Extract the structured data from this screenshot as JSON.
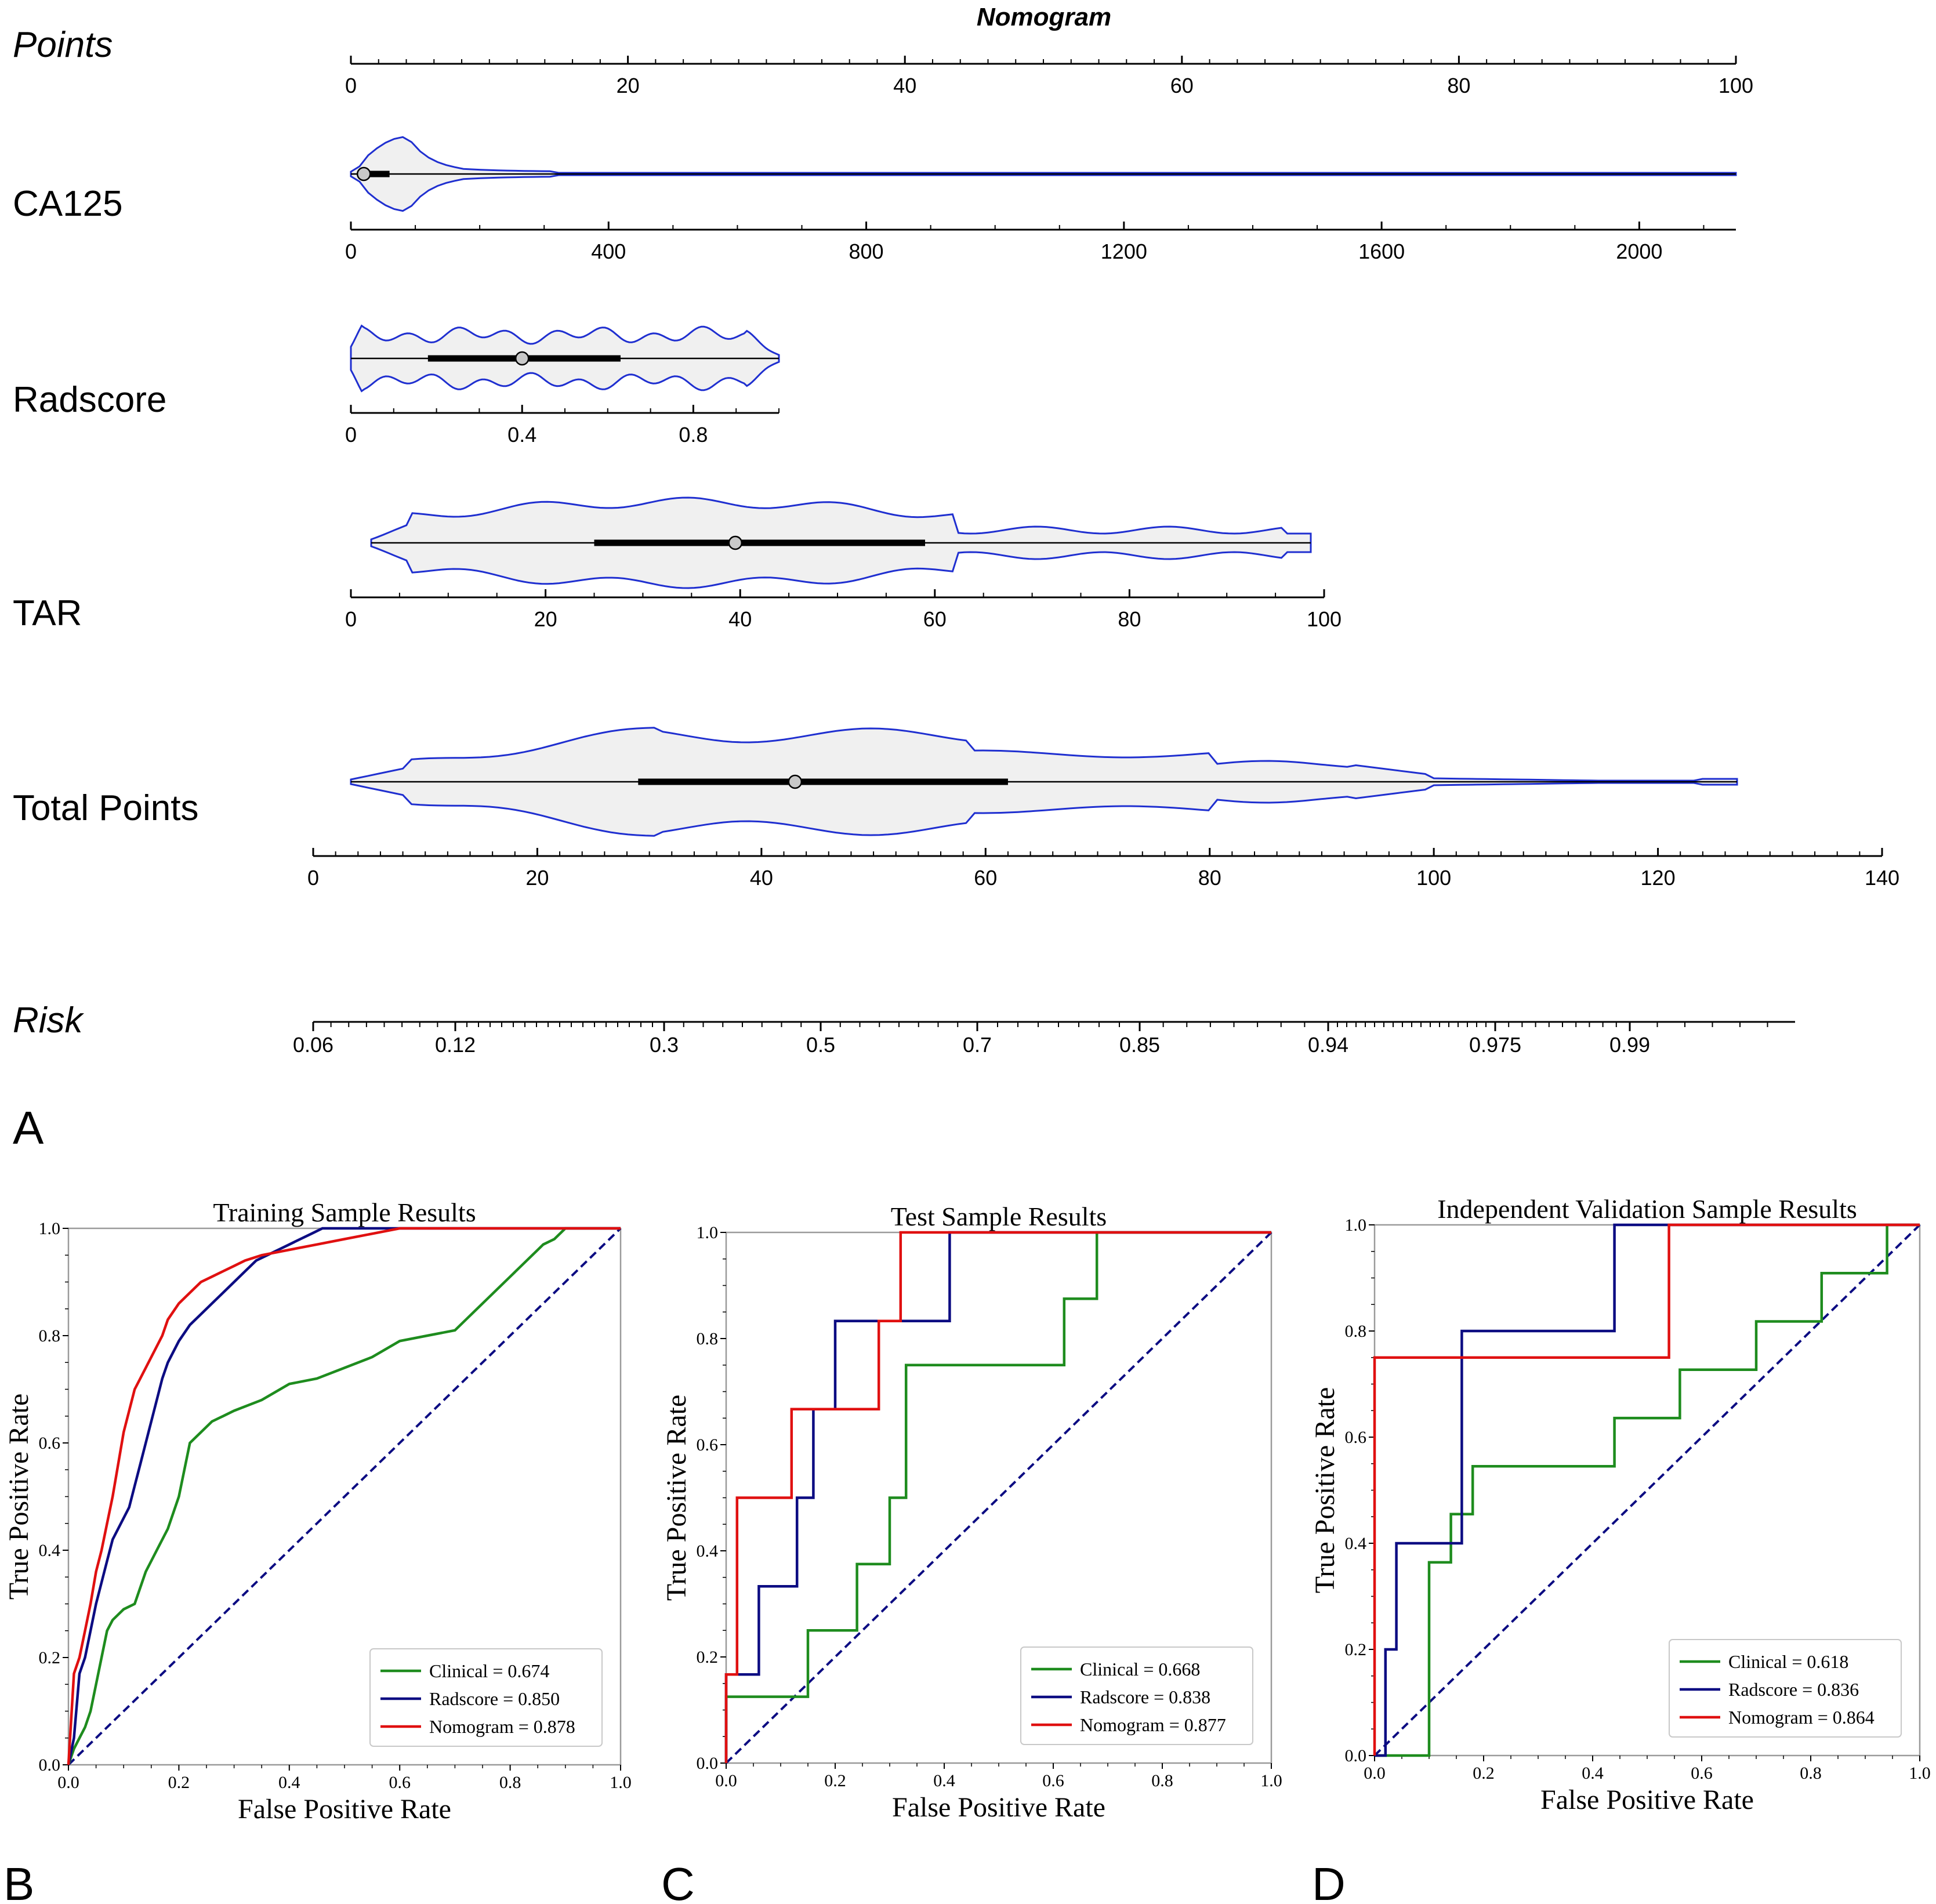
{
  "nomogram": {
    "title": "Nomogram",
    "panel_label": "A",
    "rows": [
      {
        "key": "points",
        "label": "Points",
        "italic": true
      },
      {
        "key": "ca125",
        "label": "CA125",
        "italic": false
      },
      {
        "key": "radscore",
        "label": "Radscore",
        "italic": false
      },
      {
        "key": "tar",
        "label": "TAR",
        "italic": false
      },
      {
        "key": "total",
        "label": "Total Points",
        "italic": false
      },
      {
        "key": "risk",
        "label": "Risk",
        "italic": true
      }
    ],
    "points_axis": {
      "min": 0,
      "max": 100,
      "ticks": [
        0,
        20,
        40,
        60,
        80,
        100
      ],
      "tick_labels": [
        "0",
        "20",
        "40",
        "60",
        "80",
        "100"
      ]
    },
    "ca125_axis": {
      "min": 0,
      "max": 2150,
      "ticks": [
        0,
        400,
        800,
        1200,
        1600,
        2000
      ],
      "tick_labels": [
        "0",
        "400",
        "800",
        "1200",
        "1600",
        "2000"
      ]
    },
    "radscore_axis": {
      "min": 0,
      "max": 1,
      "ticks": [
        0,
        0.4,
        0.8
      ],
      "tick_labels": [
        "0",
        "0.4",
        "0.8"
      ]
    },
    "tar_axis": {
      "min": 0,
      "max": 100,
      "ticks": [
        0,
        20,
        40,
        60,
        80,
        100
      ],
      "tick_labels": [
        "0",
        "20",
        "40",
        "60",
        "80",
        "100"
      ]
    },
    "total_axis": {
      "min": 0,
      "max": 140,
      "ticks": [
        0,
        20,
        40,
        60,
        80,
        100,
        120,
        140
      ],
      "tick_labels": [
        "0",
        "20",
        "40",
        "60",
        "80",
        "100",
        "120",
        "140"
      ]
    },
    "risk_axis": {
      "labels": [
        "0.06",
        "0.12",
        "0.3",
        "0.5",
        "0.7",
        "0.85",
        "0.94",
        "0.975",
        "0.99"
      ]
    },
    "distributions": {
      "ca125": {
        "q1": 10,
        "median": 20,
        "q3": 60
      },
      "radscore": {
        "q1": 0.18,
        "median": 0.4,
        "q3": 0.63
      },
      "tar": {
        "q1": 25,
        "median": 39.5,
        "q3": 59
      },
      "total": {
        "q1": 29,
        "median": 43,
        "q3": 62
      }
    }
  },
  "panel_labels": {
    "b": "B",
    "c": "C",
    "d": "D"
  },
  "colors": {
    "clinical": "#1e8c1e",
    "radscore": "#0c0c82",
    "nomogram": "#e01010",
    "diagonal": "#0c0c82",
    "violin_line": "#1f2fd0",
    "violin_fill": "#f0f0f0"
  },
  "chart_data": [
    {
      "type": "line",
      "title": "Training Sample Results",
      "xlabel": "False Positive Rate",
      "ylabel": "True Positive Rate",
      "xlim": [
        0,
        1
      ],
      "ylim": [
        0,
        1
      ],
      "x_tick_labels": [
        "0.0",
        "0.2",
        "0.4",
        "0.6",
        "0.8",
        "1.0"
      ],
      "y_tick_labels": [
        "0.0",
        "0.2",
        "0.4",
        "0.6",
        "0.8",
        "1.0"
      ],
      "legend": "bottom-right",
      "series": [
        {
          "name": "Clinical",
          "label": "Clinical = 0.674",
          "auc": 0.674,
          "color": "clinical",
          "x": [
            0,
            0.01,
            0.02,
            0.03,
            0.04,
            0.05,
            0.06,
            0.07,
            0.08,
            0.1,
            0.12,
            0.14,
            0.16,
            0.18,
            0.2,
            0.22,
            0.24,
            0.26,
            0.28,
            0.3,
            0.35,
            0.4,
            0.45,
            0.5,
            0.55,
            0.6,
            0.65,
            0.7,
            0.72,
            0.74,
            0.76,
            0.78,
            0.8,
            0.82,
            0.84,
            0.86,
            0.88,
            0.9,
            1.0
          ],
          "y": [
            0,
            0.03,
            0.05,
            0.07,
            0.1,
            0.15,
            0.2,
            0.25,
            0.27,
            0.29,
            0.3,
            0.36,
            0.4,
            0.44,
            0.5,
            0.6,
            0.62,
            0.64,
            0.65,
            0.66,
            0.68,
            0.71,
            0.72,
            0.74,
            0.76,
            0.79,
            0.8,
            0.81,
            0.83,
            0.85,
            0.87,
            0.89,
            0.91,
            0.93,
            0.95,
            0.97,
            0.98,
            1.0,
            1.0
          ]
        },
        {
          "name": "Radscore",
          "label": "Radscore = 0.850",
          "auc": 0.85,
          "color": "radscore",
          "x": [
            0,
            0.01,
            0.02,
            0.03,
            0.04,
            0.05,
            0.06,
            0.07,
            0.08,
            0.09,
            0.1,
            0.11,
            0.12,
            0.13,
            0.14,
            0.15,
            0.16,
            0.17,
            0.18,
            0.2,
            0.22,
            0.24,
            0.26,
            0.28,
            0.3,
            0.32,
            0.34,
            0.36,
            0.38,
            0.4,
            0.42,
            0.44,
            0.46,
            1.0
          ],
          "y": [
            0,
            0.05,
            0.17,
            0.2,
            0.25,
            0.3,
            0.34,
            0.38,
            0.42,
            0.44,
            0.46,
            0.48,
            0.52,
            0.56,
            0.6,
            0.64,
            0.68,
            0.72,
            0.75,
            0.79,
            0.82,
            0.84,
            0.86,
            0.88,
            0.9,
            0.92,
            0.94,
            0.95,
            0.96,
            0.97,
            0.98,
            0.99,
            1.0,
            1.0
          ]
        },
        {
          "name": "Nomogram",
          "label": "Nomogram = 0.878",
          "auc": 0.878,
          "color": "nomogram",
          "x": [
            0,
            0.01,
            0.02,
            0.03,
            0.04,
            0.05,
            0.06,
            0.07,
            0.08,
            0.09,
            0.1,
            0.11,
            0.12,
            0.13,
            0.14,
            0.15,
            0.16,
            0.17,
            0.18,
            0.2,
            0.22,
            0.24,
            0.26,
            0.28,
            0.3,
            0.32,
            0.35,
            0.4,
            0.45,
            0.5,
            0.55,
            0.6,
            0.65,
            1.0
          ],
          "y": [
            0,
            0.17,
            0.2,
            0.25,
            0.3,
            0.36,
            0.4,
            0.45,
            0.5,
            0.56,
            0.62,
            0.66,
            0.7,
            0.72,
            0.74,
            0.76,
            0.78,
            0.8,
            0.83,
            0.86,
            0.88,
            0.9,
            0.91,
            0.92,
            0.93,
            0.94,
            0.95,
            0.96,
            0.97,
            0.98,
            0.99,
            1.0,
            1.0,
            1.0
          ]
        }
      ]
    },
    {
      "type": "line",
      "title": "Test Sample Results",
      "xlabel": "False Positive Rate",
      "ylabel": "True Positive Rate",
      "xlim": [
        0,
        1
      ],
      "ylim": [
        0,
        1
      ],
      "x_tick_labels": [
        "0.0",
        "0.2",
        "0.4",
        "0.6",
        "0.8",
        "1.0"
      ],
      "y_tick_labels": [
        "0.0",
        "0.2",
        "0.4",
        "0.6",
        "0.8",
        "1.0"
      ],
      "legend": "bottom-right",
      "series": [
        {
          "name": "Clinical",
          "label": "Clinical = 0.668",
          "auc": 0.668,
          "color": "clinical",
          "x": [
            0,
            0,
            0.15,
            0.15,
            0.24,
            0.24,
            0.3,
            0.3,
            0.33,
            0.33,
            0.62,
            0.62,
            0.68,
            0.68,
            1.0
          ],
          "y": [
            0,
            0.125,
            0.125,
            0.25,
            0.25,
            0.375,
            0.375,
            0.5,
            0.5,
            0.75,
            0.75,
            0.875,
            0.875,
            1.0,
            1.0
          ]
        },
        {
          "name": "Radscore",
          "label": "Radscore = 0.838",
          "auc": 0.838,
          "color": "radscore",
          "x": [
            0,
            0.06,
            0.06,
            0.13,
            0.13,
            0.16,
            0.16,
            0.2,
            0.2,
            0.41,
            0.41,
            1.0
          ],
          "y": [
            0,
            0.167,
            0.333,
            0.333,
            0.5,
            0.5,
            0.667,
            0.667,
            0.833,
            0.833,
            1.0,
            1.0
          ],
          "steps": [
            [
              0,
              0
            ],
            [
              0,
              0.167
            ],
            [
              0.06,
              0.167
            ],
            [
              0.06,
              0.333
            ],
            [
              0.13,
              0.333
            ],
            [
              0.13,
              0.5
            ],
            [
              0.16,
              0.5
            ],
            [
              0.16,
              0.667
            ],
            [
              0.2,
              0.667
            ],
            [
              0.2,
              0.833
            ],
            [
              0.32,
              0.833
            ],
            [
              0.41,
              0.833
            ],
            [
              0.41,
              1.0
            ],
            [
              1.0,
              1.0
            ]
          ]
        },
        {
          "name": "Nomogram",
          "label": "Nomogram = 0.877",
          "auc": 0.877,
          "color": "nomogram",
          "x": [
            0,
            0,
            0.02,
            0.02,
            0.12,
            0.12,
            0.28,
            0.28,
            0.32,
            0.32,
            1.0
          ],
          "y": [
            0,
            0.167,
            0.167,
            0.5,
            0.5,
            0.667,
            0.667,
            0.833,
            0.833,
            1.0,
            1.0
          ]
        }
      ]
    },
    {
      "type": "line",
      "title": "Independent Validation Sample Results",
      "xlabel": "False Positive Rate",
      "ylabel": "True Positive Rate",
      "xlim": [
        0,
        1
      ],
      "ylim": [
        0,
        1
      ],
      "x_tick_labels": [
        "0.0",
        "0.2",
        "0.4",
        "0.6",
        "0.8",
        "1.0"
      ],
      "y_tick_labels": [
        "0.0",
        "0.2",
        "0.4",
        "0.6",
        "0.8",
        "1.0"
      ],
      "legend": "bottom-right",
      "series": [
        {
          "name": "Clinical",
          "label": "Clinical = 0.618",
          "auc": 0.618,
          "color": "clinical",
          "x": [
            0,
            0.1,
            0.1,
            0.14,
            0.14,
            0.18,
            0.18,
            0.44,
            0.44,
            0.56,
            0.56,
            0.7,
            0.7,
            0.82,
            0.82,
            0.94,
            0.94,
            1.0
          ],
          "y": [
            0,
            0,
            0.364,
            0.364,
            0.455,
            0.455,
            0.545,
            0.545,
            0.636,
            0.636,
            0.727,
            0.727,
            0.818,
            0.818,
            0.909,
            0.909,
            1.0,
            1.0
          ]
        },
        {
          "name": "Radscore",
          "label": "Radscore = 0.836",
          "auc": 0.836,
          "color": "radscore",
          "x": [
            0,
            0.02,
            0.02,
            0.04,
            0.04,
            0.16,
            0.16,
            0.44,
            0.44,
            1.0
          ],
          "y": [
            0,
            0,
            0.2,
            0.2,
            0.4,
            0.4,
            0.8,
            0.8,
            1.0,
            1.0
          ]
        },
        {
          "name": "Nomogram",
          "label": "Nomogram = 0.864",
          "auc": 0.864,
          "color": "nomogram",
          "x": [
            0,
            0,
            0.54,
            0.54,
            1.0
          ],
          "y": [
            0,
            0.75,
            0.75,
            1.0,
            1.0
          ]
        }
      ]
    }
  ]
}
